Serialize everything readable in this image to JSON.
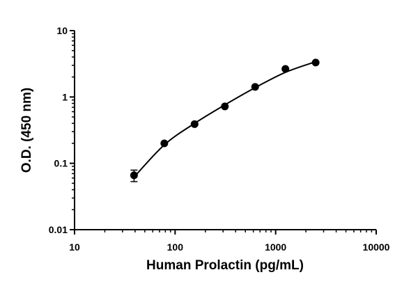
{
  "chart_data": {
    "type": "scatter",
    "xlabel": "Human Prolactin (pg/mL)",
    "ylabel": "O.D. (450 nm)",
    "xscale": "log",
    "yscale": "log",
    "minor_ticks": true,
    "xlim": [
      10,
      10000
    ],
    "xticks": [
      10,
      100,
      1000,
      10000
    ],
    "ylim": [
      0.01,
      10
    ],
    "yticks": [
      0.01,
      0.1,
      1,
      10
    ],
    "points": {
      "color": "#000000",
      "x": [
        39.06,
        78.13,
        156.25,
        312.5,
        625,
        1250,
        2500
      ],
      "values": [
        0.066,
        0.2,
        0.39,
        0.72,
        1.42,
        2.65,
        3.3
      ],
      "errors": [
        0.013,
        null,
        null,
        null,
        null,
        null,
        null
      ]
    },
    "fit": {
      "color": "#000000",
      "x": [
        39.06,
        78.13,
        156.25,
        312.5,
        625,
        1250,
        2500
      ],
      "values": [
        0.062,
        0.19,
        0.4,
        0.76,
        1.38,
        2.35,
        3.4
      ]
    }
  }
}
